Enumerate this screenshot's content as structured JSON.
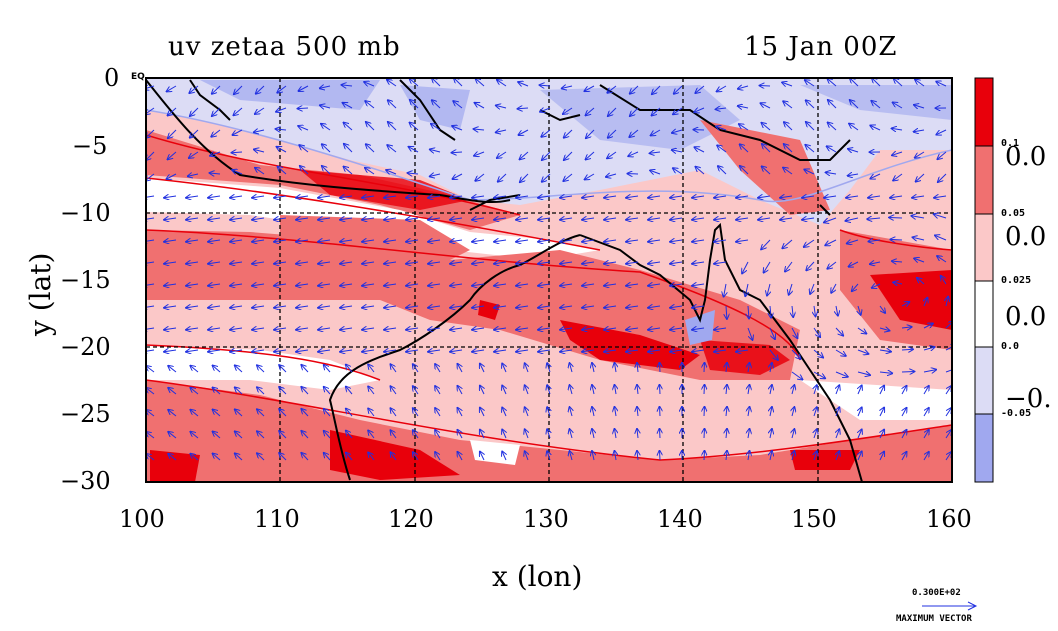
{
  "title": "uv zetaa 500 mb",
  "timestamp": "15 Jan 00Z",
  "x_label": "x (lon)",
  "y_label": "y (lat)",
  "x_ticks": [
    "100",
    "110",
    "120",
    "130",
    "140",
    "150",
    "160"
  ],
  "y_ticks": [
    "0",
    "−5",
    "−10",
    "−15",
    "−20",
    "−25",
    "−30"
  ],
  "eq_label": "EQ",
  "colorbar": {
    "small_labels": [
      "0.1",
      "0.05",
      "0.025",
      "0.0",
      "-0.05"
    ],
    "big_labels": [
      "0.0",
      "0.0",
      "0.0",
      "−0."
    ],
    "colors": [
      "#e8000b",
      "#f07070",
      "#fbc8c8",
      "#ffffff",
      "#dcdcf5",
      "#a0a8ef"
    ]
  },
  "vector_legend": {
    "value": "0.300E+02",
    "caption": "MAXIMUM VECTOR"
  },
  "palette": {
    "strong_red": "#e8000b",
    "mid_red": "#f07070",
    "light_red": "#fbc8c8",
    "light_blue": "#dcdcf5",
    "mid_blue": "#a0a8ef",
    "vector_blue": "#2030e0",
    "coast": "#000000"
  },
  "map": {
    "lon_range": [
      100,
      160
    ],
    "lat_range": [
      -30,
      0
    ],
    "grid_lons": [
      110,
      120,
      130,
      140,
      150
    ],
    "grid_lats": [
      -10,
      -20
    ]
  }
}
